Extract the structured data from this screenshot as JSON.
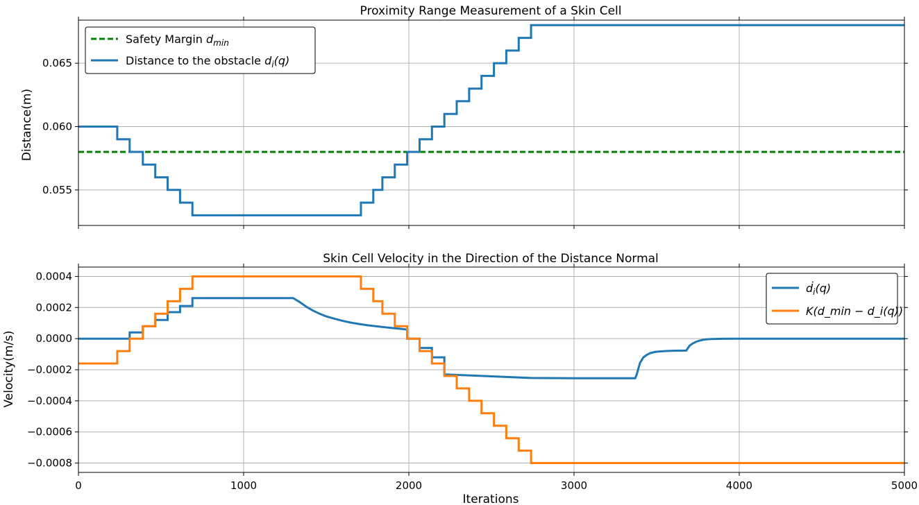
{
  "chart_data": [
    {
      "type": "line",
      "title": "Proximity Range Measurement of a Skin Cell",
      "xlabel": "",
      "ylabel": "Distance(m)",
      "xlim": [
        0,
        5000
      ],
      "ylim": [
        0.0522,
        0.0684
      ],
      "yticks": [
        "0.055",
        "0.060",
        "0.065"
      ],
      "ytick_values": [
        0.055,
        0.06,
        0.065
      ],
      "xticks": [
        0,
        1000,
        2000,
        3000,
        4000,
        5000
      ],
      "grid": true,
      "legend": "top-left",
      "series": [
        {
          "name": "Safety Margin",
          "name_sub": "min",
          "name_var": "d",
          "color": "#008000",
          "style": "dashed",
          "x": [
            0,
            5000
          ],
          "y": [
            0.058,
            0.058
          ]
        },
        {
          "name": "Distance to the obstacle",
          "name_var": "d",
          "name_sub": "i",
          "name_arg": "(q)",
          "color": "#1f77b4",
          "style": "step",
          "x": [
            0,
            235,
            235,
            310,
            310,
            390,
            390,
            465,
            465,
            540,
            540,
            615,
            615,
            690,
            690,
            1710,
            1710,
            1785,
            1785,
            1840,
            1840,
            1915,
            1915,
            1990,
            1990,
            2065,
            2065,
            2140,
            2140,
            2215,
            2215,
            2290,
            2290,
            2365,
            2365,
            2440,
            2440,
            2515,
            2515,
            2590,
            2590,
            2665,
            2665,
            2740,
            2740,
            5000
          ],
          "y": [
            0.06,
            0.06,
            0.059,
            0.059,
            0.058,
            0.058,
            0.057,
            0.057,
            0.056,
            0.056,
            0.055,
            0.055,
            0.054,
            0.054,
            0.053,
            0.053,
            0.054,
            0.054,
            0.055,
            0.055,
            0.056,
            0.056,
            0.057,
            0.057,
            0.058,
            0.058,
            0.059,
            0.059,
            0.06,
            0.06,
            0.061,
            0.061,
            0.062,
            0.062,
            0.063,
            0.063,
            0.064,
            0.064,
            0.065,
            0.065,
            0.066,
            0.066,
            0.067,
            0.067,
            0.068,
            0.068
          ]
        }
      ]
    },
    {
      "type": "line",
      "title": "Skin Cell Velocity in the Direction of the Distance Normal",
      "xlabel": "Iterations",
      "ylabel": "Velocity(m/s)",
      "xlim": [
        0,
        5000
      ],
      "ylim": [
        -0.00086,
        0.00046
      ],
      "yticks": [
        "0.0004",
        "0.0002",
        "0.0000",
        "−0.0002",
        "−0.0004",
        "−0.0006",
        "−0.0008"
      ],
      "ytick_values": [
        0.0004,
        0.0002,
        0.0,
        -0.0002,
        -0.0004,
        -0.0006,
        -0.0008
      ],
      "xticks": [
        0,
        1000,
        2000,
        3000,
        4000,
        5000
      ],
      "grid": true,
      "legend": "top-right",
      "series": [
        {
          "name": "",
          "name_var": "ḋ",
          "name_sub": "i",
          "name_arg": "(q)",
          "color": "#1f77b4",
          "style": "line",
          "x": [
            0,
            310,
            310,
            390,
            390,
            465,
            465,
            540,
            540,
            615,
            615,
            690,
            690,
            1300,
            1340,
            1380,
            1420,
            1460,
            1500,
            1550,
            1600,
            1650,
            1700,
            1750,
            1800,
            1850,
            1900,
            1950,
            1990,
            1990,
            2065,
            2065,
            2140,
            2140,
            2215,
            2215,
            2400,
            2600,
            2740,
            3000,
            3370,
            3380,
            3390,
            3400,
            3420,
            3440,
            3460,
            3480,
            3500,
            3550,
            3600,
            3680,
            3690,
            3700,
            3720,
            3740,
            3760,
            3780,
            3800,
            3830,
            3860,
            3900,
            3950,
            4000,
            5000
          ],
          "y": [
            0.0,
            0.0,
            4e-05,
            4e-05,
            8e-05,
            8e-05,
            0.00012,
            0.00012,
            0.00017,
            0.00017,
            0.00021,
            0.00021,
            0.00026,
            0.00026,
            0.000235,
            0.000205,
            0.00018,
            0.00016,
            0.000143,
            0.000128,
            0.000114,
            0.000103,
            9.4e-05,
            8.6e-05,
            8e-05,
            7.4e-05,
            6.8e-05,
            6.3e-05,
            5.8e-05,
            0.0,
            0.0,
            -6e-05,
            -6e-05,
            -0.00012,
            -0.00012,
            -0.00023,
            -0.000238,
            -0.000247,
            -0.000253,
            -0.000255,
            -0.000255,
            -0.00023,
            -0.00019,
            -0.000155,
            -0.00012,
            -0.000105,
            -9.4e-05,
            -8.8e-05,
            -8.4e-05,
            -8e-05,
            -7.8e-05,
            -7.7e-05,
            -6e-05,
            -4.5e-05,
            -3e-05,
            -2e-05,
            -1.3e-05,
            -8e-06,
            -5e-06,
            -3e-06,
            -2e-06,
            -1e-06,
            0.0,
            0.0,
            0.0
          ]
        },
        {
          "name": "",
          "name_var": "K",
          "name_formula": "(d_min − d_i(q))",
          "color": "#ff7f0e",
          "style": "step",
          "x": [
            0,
            235,
            235,
            310,
            310,
            390,
            390,
            465,
            465,
            540,
            540,
            615,
            615,
            690,
            690,
            1710,
            1710,
            1785,
            1785,
            1840,
            1840,
            1915,
            1915,
            1990,
            1990,
            2065,
            2065,
            2140,
            2140,
            2215,
            2215,
            2290,
            2290,
            2365,
            2365,
            2440,
            2440,
            2515,
            2515,
            2590,
            2590,
            2665,
            2665,
            2740,
            2740,
            5000
          ],
          "y": [
            -0.00016,
            -0.00016,
            -8e-05,
            -8e-05,
            0.0,
            0.0,
            8e-05,
            8e-05,
            0.00016,
            0.00016,
            0.00024,
            0.00024,
            0.00032,
            0.00032,
            0.0004,
            0.0004,
            0.00032,
            0.00032,
            0.00024,
            0.00024,
            0.00016,
            0.00016,
            8e-05,
            8e-05,
            0.0,
            0.0,
            -8e-05,
            -8e-05,
            -0.00016,
            -0.00016,
            -0.00024,
            -0.00024,
            -0.00032,
            -0.00032,
            -0.0004,
            -0.0004,
            -0.00048,
            -0.00048,
            -0.00056,
            -0.00056,
            -0.00064,
            -0.00064,
            -0.00072,
            -0.00072,
            -0.0008,
            -0.0008
          ]
        }
      ]
    }
  ]
}
